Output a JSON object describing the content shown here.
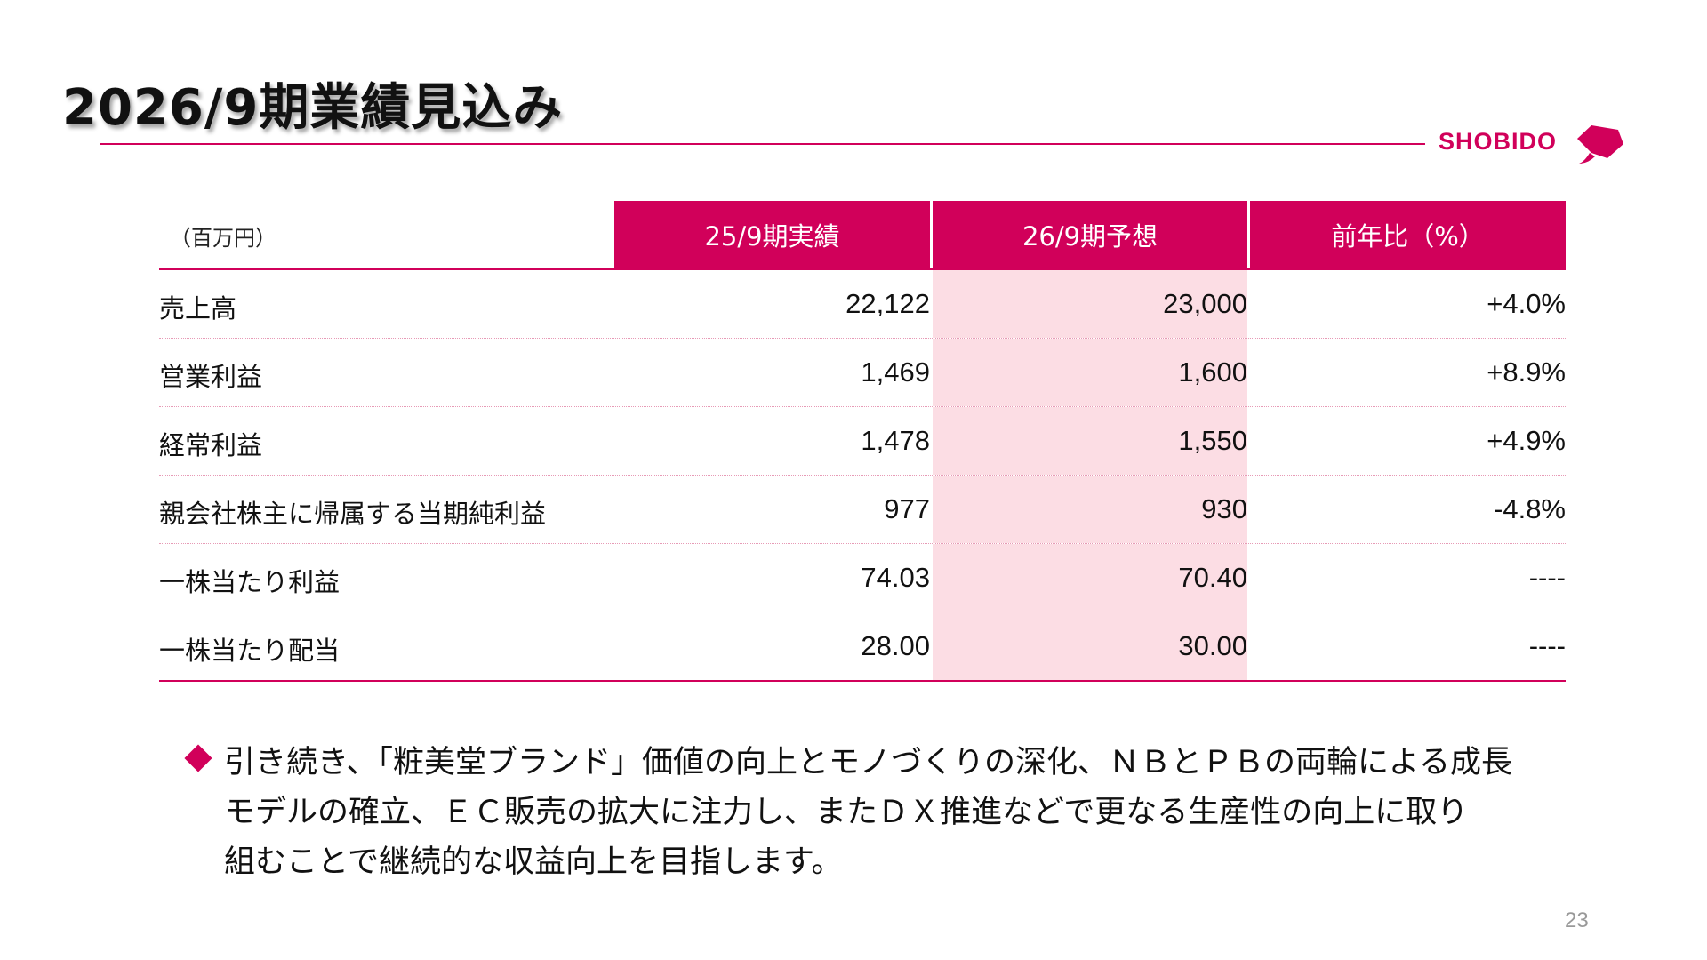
{
  "title": "2026/9期業績見込み",
  "logo": {
    "text": "SHOBIDO",
    "color": "#d1005a"
  },
  "table": {
    "unit": "（百万円）",
    "headers": [
      "25/9期実績",
      "26/9期予想",
      "前年比（%）"
    ],
    "rows": [
      {
        "label": "売上高",
        "actual": "22,122",
        "forecast": "23,000",
        "yoy": "+4.0%"
      },
      {
        "label": "営業利益",
        "actual": "1,469",
        "forecast": "1,600",
        "yoy": "+8.9%"
      },
      {
        "label": "経常利益",
        "actual": "1,478",
        "forecast": "1,550",
        "yoy": "+4.9%"
      },
      {
        "label": "親会社株主に帰属する当期純利益",
        "actual": "977",
        "forecast": "930",
        "yoy": "-4.8%"
      },
      {
        "label": "一株当たり利益",
        "actual": "74.03",
        "forecast": "70.40",
        "yoy": "----"
      },
      {
        "label": "一株当たり配当",
        "actual": "28.00",
        "forecast": "30.00",
        "yoy": "----"
      }
    ]
  },
  "bullet": {
    "lines": [
      "引き続き、「粧美堂ブランド」価値の向上とモノづくりの深化、ＮＢとＰＢの両輪による成長",
      "モデルの確立、ＥＣ販売の拡大に注力し、またＤＸ推進などで更なる生産性の向上に取り",
      "組むことで継続的な収益向上を目指します。"
    ]
  },
  "page_number": "23",
  "colors": {
    "accent": "#d1005a",
    "highlight": "#fcdde4"
  }
}
